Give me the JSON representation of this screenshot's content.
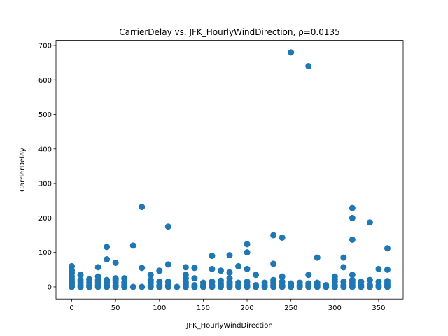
{
  "chart_data": {
    "type": "scatter",
    "title": "CarrierDelay vs. JFK_HourlyWindDirection, ρ=0.0135",
    "xlabel": "JFK_HourlyWindDirection",
    "ylabel": "CarrierDelay",
    "xlim": [
      -18,
      378
    ],
    "ylim": [
      -35,
      715
    ],
    "xticks": [
      0,
      50,
      100,
      150,
      200,
      250,
      300,
      350
    ],
    "yticks": [
      0,
      100,
      200,
      300,
      400,
      500,
      600,
      700
    ],
    "grid": false,
    "marker_color": "#1f77b4",
    "points": [
      [
        0,
        0
      ],
      [
        0,
        5
      ],
      [
        0,
        10
      ],
      [
        0,
        15
      ],
      [
        0,
        22
      ],
      [
        0,
        30
      ],
      [
        0,
        40
      ],
      [
        0,
        48
      ],
      [
        0,
        60
      ],
      [
        10,
        0
      ],
      [
        10,
        5
      ],
      [
        10,
        12
      ],
      [
        10,
        20
      ],
      [
        10,
        35
      ],
      [
        20,
        0
      ],
      [
        20,
        5
      ],
      [
        20,
        12
      ],
      [
        20,
        22
      ],
      [
        30,
        0
      ],
      [
        30,
        5
      ],
      [
        30,
        12
      ],
      [
        30,
        20
      ],
      [
        30,
        30
      ],
      [
        30,
        57
      ],
      [
        40,
        0
      ],
      [
        40,
        5
      ],
      [
        40,
        12
      ],
      [
        40,
        20
      ],
      [
        40,
        80
      ],
      [
        40,
        116
      ],
      [
        50,
        0
      ],
      [
        50,
        5
      ],
      [
        50,
        12
      ],
      [
        50,
        20
      ],
      [
        50,
        25
      ],
      [
        50,
        70
      ],
      [
        60,
        0
      ],
      [
        60,
        5
      ],
      [
        60,
        12
      ],
      [
        60,
        25
      ],
      [
        70,
        0
      ],
      [
        70,
        120
      ],
      [
        80,
        0
      ],
      [
        80,
        55
      ],
      [
        80,
        232
      ],
      [
        90,
        0
      ],
      [
        90,
        5
      ],
      [
        90,
        12
      ],
      [
        90,
        20
      ],
      [
        90,
        35
      ],
      [
        100,
        0
      ],
      [
        100,
        5
      ],
      [
        100,
        15
      ],
      [
        100,
        47
      ],
      [
        110,
        0
      ],
      [
        110,
        5
      ],
      [
        110,
        15
      ],
      [
        110,
        65
      ],
      [
        110,
        175
      ],
      [
        120,
        0
      ],
      [
        130,
        0
      ],
      [
        130,
        5
      ],
      [
        130,
        10
      ],
      [
        130,
        15
      ],
      [
        130,
        25
      ],
      [
        130,
        35
      ],
      [
        130,
        57
      ],
      [
        140,
        0
      ],
      [
        140,
        5
      ],
      [
        140,
        25
      ],
      [
        140,
        55
      ],
      [
        150,
        0
      ],
      [
        150,
        5
      ],
      [
        150,
        12
      ],
      [
        160,
        0
      ],
      [
        160,
        5
      ],
      [
        160,
        15
      ],
      [
        160,
        52
      ],
      [
        160,
        90
      ],
      [
        170,
        0
      ],
      [
        170,
        5
      ],
      [
        170,
        10
      ],
      [
        170,
        18
      ],
      [
        170,
        47
      ],
      [
        180,
        0
      ],
      [
        180,
        5
      ],
      [
        180,
        10
      ],
      [
        180,
        15
      ],
      [
        180,
        25
      ],
      [
        180,
        42
      ],
      [
        180,
        92
      ],
      [
        190,
        0
      ],
      [
        190,
        5
      ],
      [
        190,
        12
      ],
      [
        190,
        60
      ],
      [
        200,
        0
      ],
      [
        200,
        5
      ],
      [
        200,
        15
      ],
      [
        200,
        52
      ],
      [
        200,
        100
      ],
      [
        200,
        124
      ],
      [
        210,
        0
      ],
      [
        210,
        5
      ],
      [
        210,
        35
      ],
      [
        220,
        0
      ],
      [
        220,
        5
      ],
      [
        220,
        12
      ],
      [
        230,
        0
      ],
      [
        230,
        5
      ],
      [
        230,
        12
      ],
      [
        230,
        20
      ],
      [
        230,
        67
      ],
      [
        230,
        150
      ],
      [
        240,
        0
      ],
      [
        240,
        5
      ],
      [
        240,
        15
      ],
      [
        240,
        30
      ],
      [
        240,
        143
      ],
      [
        250,
        0
      ],
      [
        250,
        5
      ],
      [
        250,
        10
      ],
      [
        250,
        680
      ],
      [
        260,
        0
      ],
      [
        260,
        5
      ],
      [
        260,
        12
      ],
      [
        270,
        0
      ],
      [
        270,
        5
      ],
      [
        270,
        10
      ],
      [
        270,
        35
      ],
      [
        270,
        640
      ],
      [
        280,
        0
      ],
      [
        280,
        5
      ],
      [
        280,
        12
      ],
      [
        280,
        85
      ],
      [
        290,
        0
      ],
      [
        290,
        5
      ],
      [
        300,
        0
      ],
      [
        300,
        5
      ],
      [
        300,
        15
      ],
      [
        300,
        22
      ],
      [
        300,
        30
      ],
      [
        310,
        0
      ],
      [
        310,
        5
      ],
      [
        310,
        15
      ],
      [
        310,
        57
      ],
      [
        310,
        85
      ],
      [
        320,
        0
      ],
      [
        320,
        5
      ],
      [
        320,
        12
      ],
      [
        320,
        20
      ],
      [
        320,
        35
      ],
      [
        320,
        137
      ],
      [
        320,
        200
      ],
      [
        320,
        229
      ],
      [
        330,
        0
      ],
      [
        330,
        5
      ],
      [
        330,
        15
      ],
      [
        340,
        0
      ],
      [
        340,
        5
      ],
      [
        340,
        20
      ],
      [
        340,
        187
      ],
      [
        350,
        0
      ],
      [
        350,
        5
      ],
      [
        350,
        15
      ],
      [
        350,
        52
      ],
      [
        360,
        0
      ],
      [
        360,
        5
      ],
      [
        360,
        10
      ],
      [
        360,
        17
      ],
      [
        360,
        50
      ],
      [
        360,
        112
      ]
    ]
  }
}
